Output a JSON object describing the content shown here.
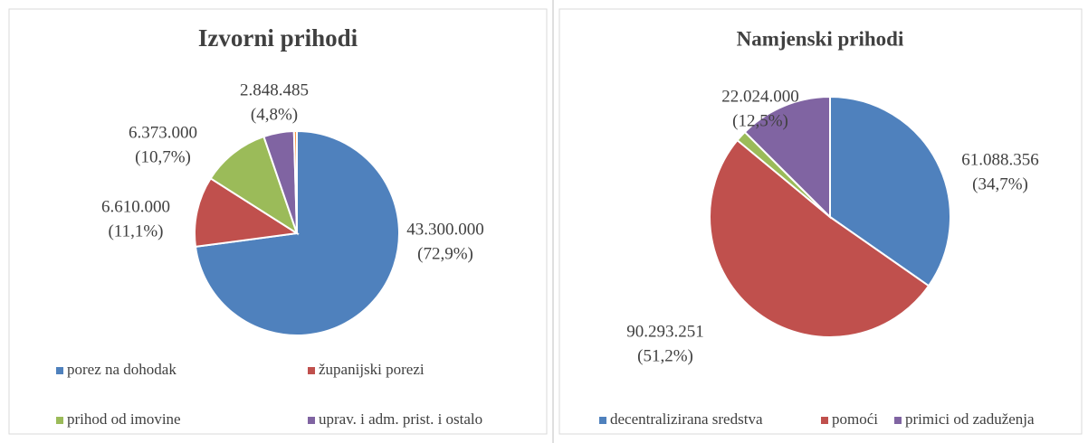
{
  "chart_data": [
    {
      "type": "pie",
      "title": "Izvorni prihodi",
      "categories": [
        "porez na dohodak",
        "županijski porezi",
        "prihod od imovine",
        "uprav. i adm. prist. i ostalo",
        null
      ],
      "values": [
        43300000,
        6610000,
        6373000,
        2848485,
        270000
      ],
      "value_labels": [
        [
          "43.300.000",
          "(72,9%)"
        ],
        [
          "6.610.000",
          "(11,1%)"
        ],
        [
          "6.373.000",
          "(10,7%)"
        ],
        [
          "2.848.485",
          "(4,8%)"
        ],
        null
      ],
      "colors": [
        "#4f81bd",
        "#c0504d",
        "#9bbb59",
        "#8064a2",
        "#f79646"
      ],
      "legend": "bottom"
    },
    {
      "type": "pie",
      "title": "Namjenski prihodi",
      "categories": [
        "decentralizirana sredstva",
        "pomoći",
        null,
        "primici od zaduženja"
      ],
      "values": [
        61088356,
        90293251,
        2600000,
        22024000
      ],
      "value_labels": [
        [
          "61.088.356",
          "(34,7%)"
        ],
        [
          "90.293.251",
          "(51,2%)"
        ],
        null,
        [
          "22.024.000",
          "(12,5%)"
        ]
      ],
      "colors": [
        "#4f81bd",
        "#c0504d",
        "#9bbb59",
        "#8064a2"
      ],
      "legend": "bottom"
    }
  ]
}
